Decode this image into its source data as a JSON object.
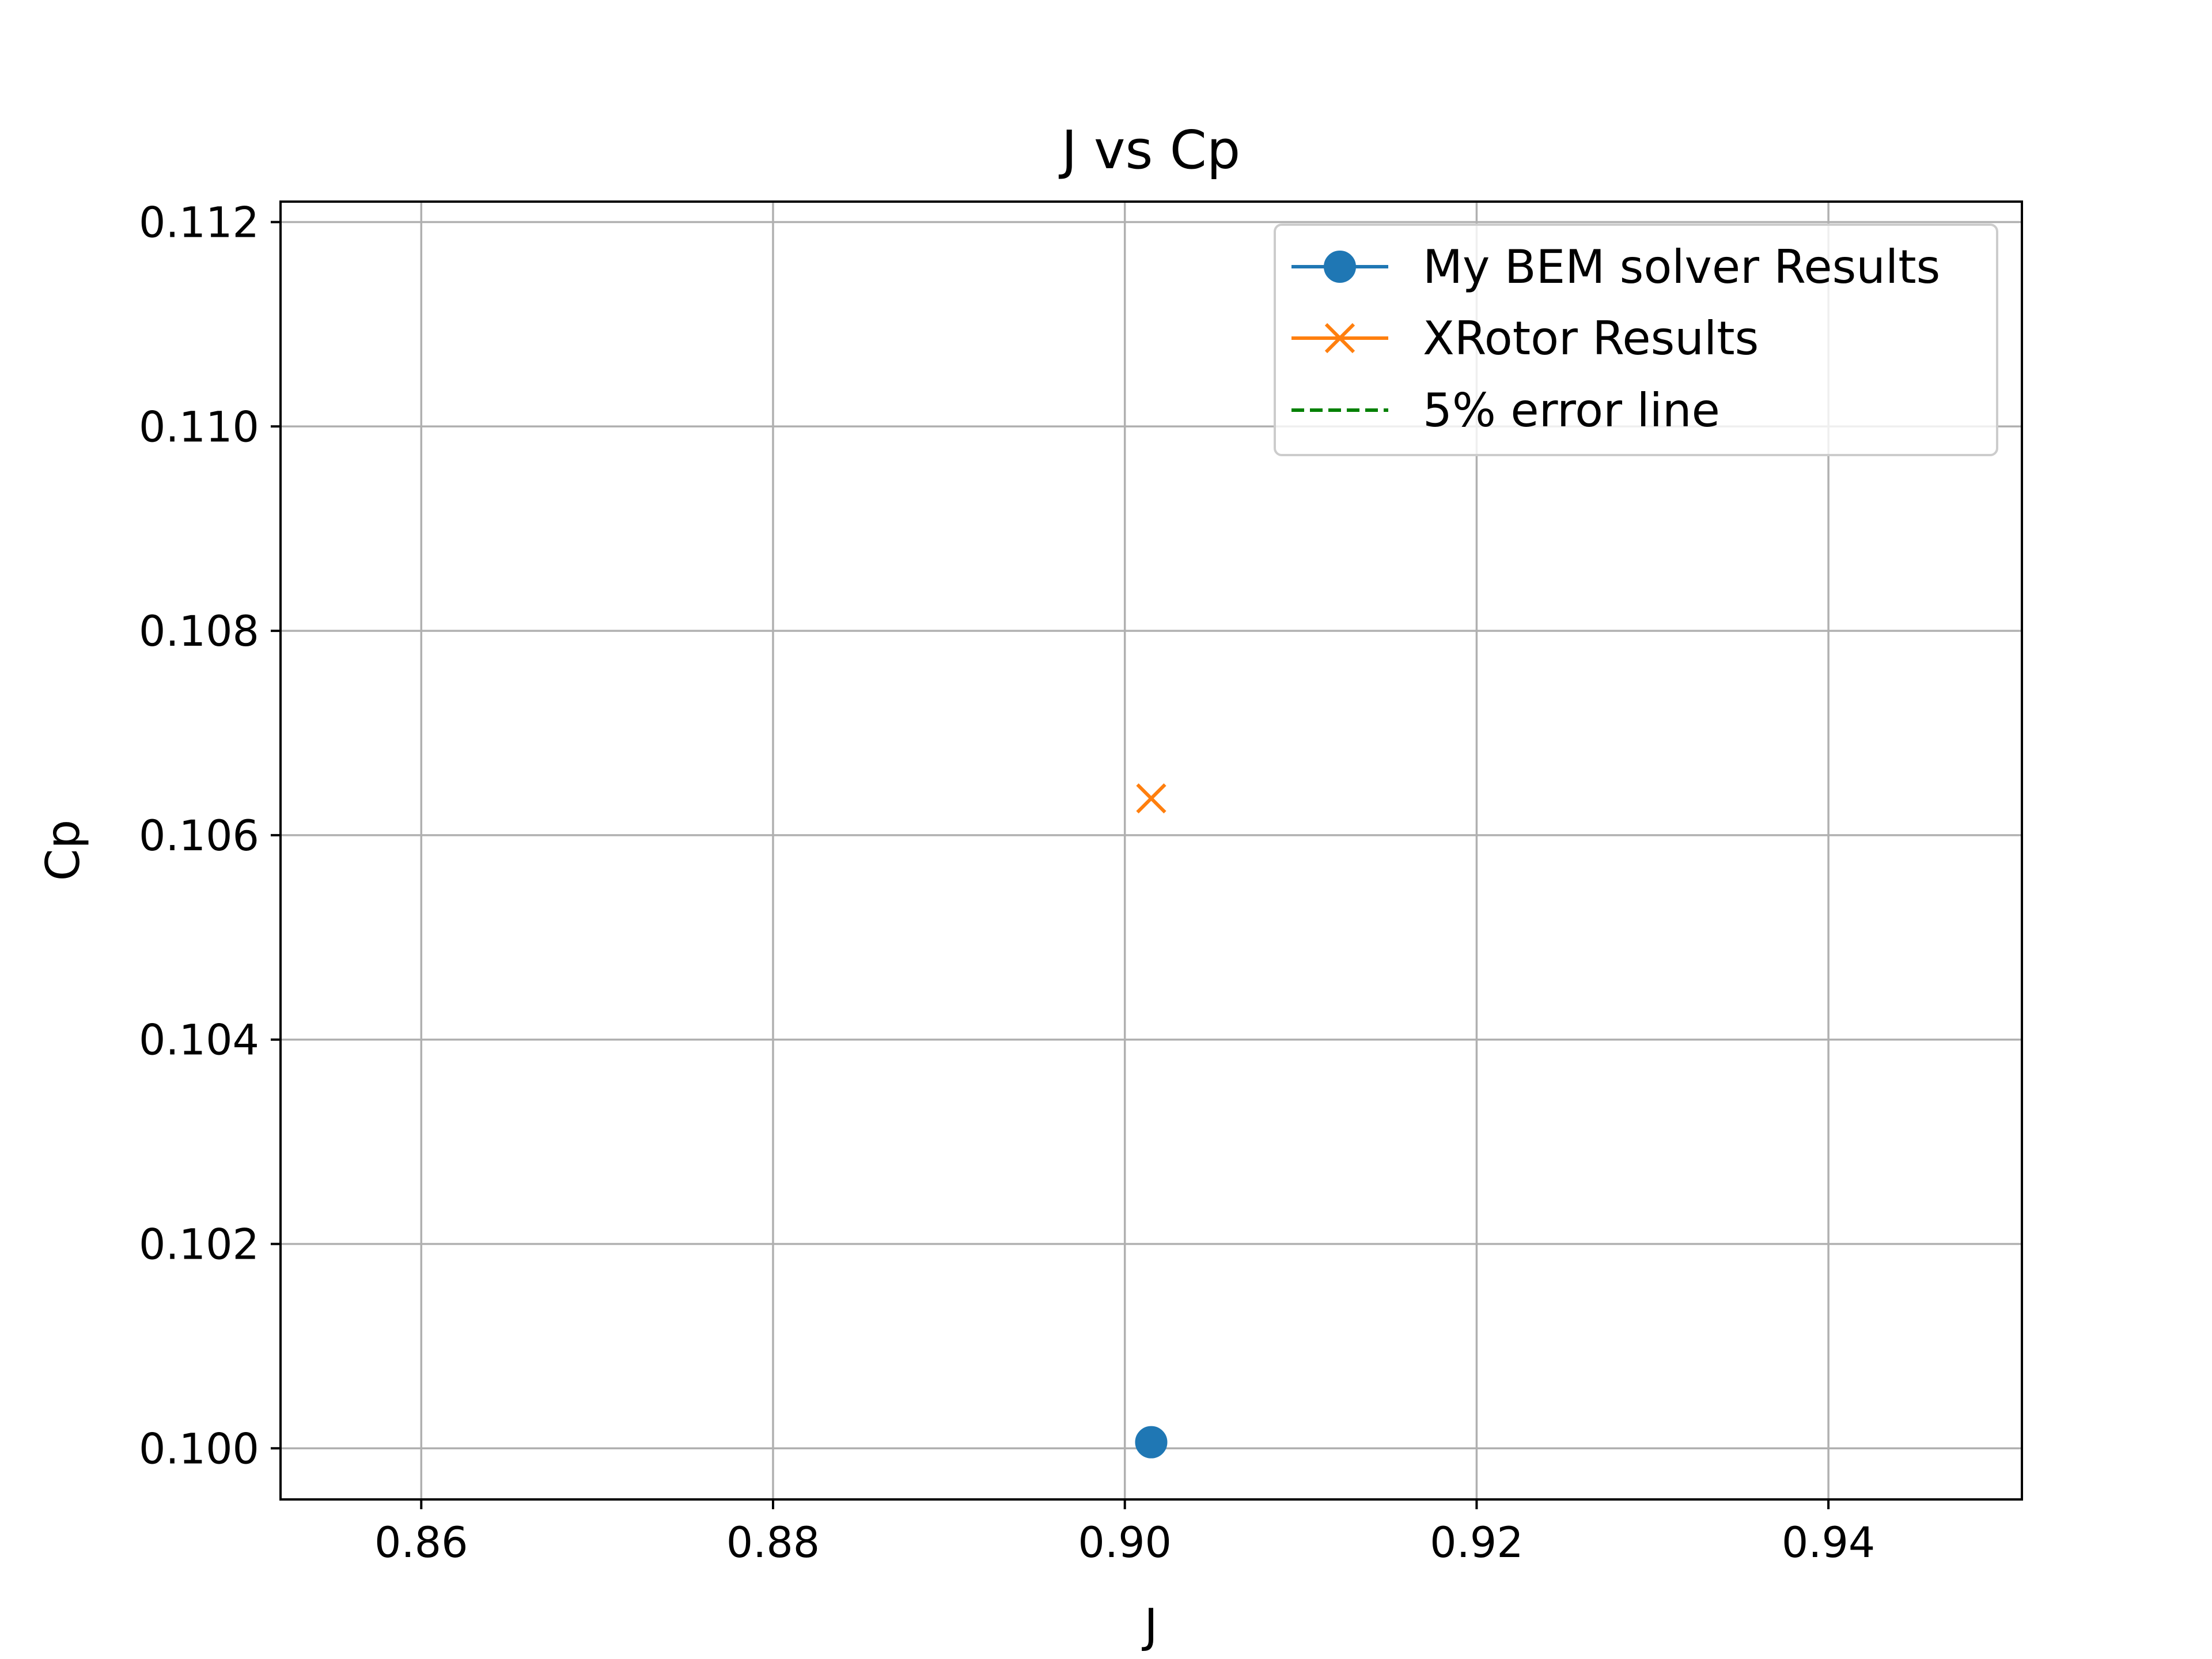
{
  "chart_data": {
    "type": "scatter",
    "title": "J vs Cp",
    "xlabel": "J",
    "ylabel": "Cp",
    "xlim": [
      0.852,
      0.951
    ],
    "ylim": [
      0.0995,
      0.1122
    ],
    "xticks": [
      0.86,
      0.88,
      0.9,
      0.92,
      0.94
    ],
    "xtick_labels": [
      "0.86",
      "0.88",
      "0.90",
      "0.92",
      "0.94"
    ],
    "yticks": [
      0.1,
      0.102,
      0.104,
      0.106,
      0.108,
      0.11,
      0.112
    ],
    "ytick_labels": [
      "0.100",
      "0.102",
      "0.104",
      "0.106",
      "0.108",
      "0.110",
      "0.112"
    ],
    "grid": true,
    "legend_position": "top-right",
    "series": [
      {
        "name": "My BEM solver Results",
        "marker": "circle",
        "line": "solid",
        "color": "#1f77b4",
        "points": [
          {
            "x": 0.9015,
            "y": 0.10006
          }
        ]
      },
      {
        "name": "XRotor Results",
        "marker": "x",
        "line": "solid",
        "color": "#ff7f0e",
        "points": [
          {
            "x": 0.9015,
            "y": 0.10636
          }
        ]
      },
      {
        "name": "5% error line",
        "marker": "none",
        "line": "dashed",
        "color": "#008000",
        "points": []
      }
    ]
  }
}
